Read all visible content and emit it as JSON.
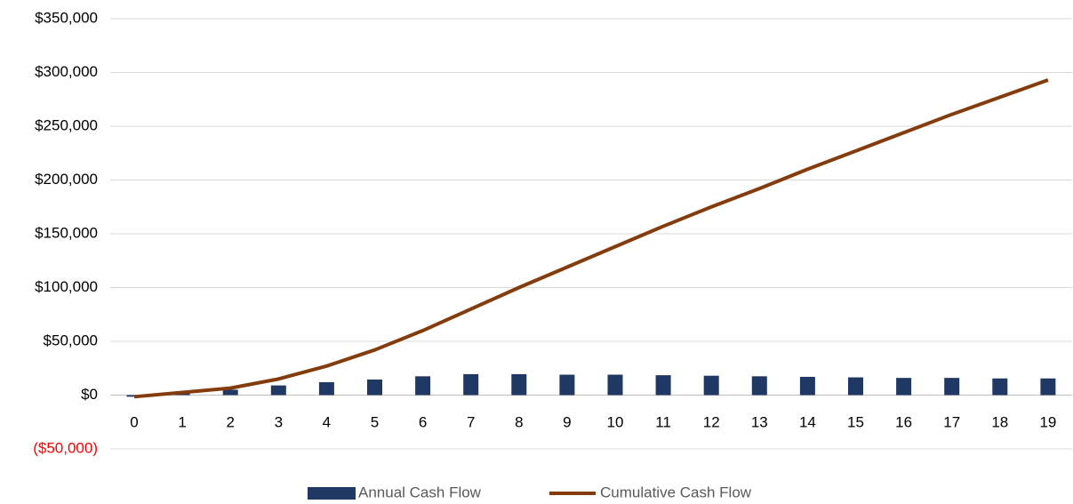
{
  "chart_data": {
    "type": "bar_line",
    "categories": [
      "0",
      "1",
      "2",
      "3",
      "4",
      "5",
      "6",
      "7",
      "8",
      "9",
      "10",
      "11",
      "12",
      "13",
      "14",
      "15",
      "16",
      "17",
      "18",
      "19"
    ],
    "series": [
      {
        "name": "Annual Cash Flow",
        "type": "bar",
        "color": "#203864",
        "values": [
          -1500,
          2000,
          5000,
          9000,
          12000,
          14500,
          17500,
          19500,
          19500,
          19000,
          19000,
          18500,
          18000,
          17500,
          17000,
          16500,
          16000,
          16000,
          15500,
          15500
        ]
      },
      {
        "name": "Cumulative Cash Flow",
        "type": "line",
        "color": "#843c0c",
        "values": [
          -1500,
          2500,
          6500,
          15000,
          27000,
          42000,
          60000,
          80000,
          100000,
          119000,
          138000,
          157000,
          175000,
          192000,
          210000,
          227000,
          244000,
          261000,
          277000,
          293000
        ]
      }
    ],
    "ylim": [
      -50000,
      350000
    ],
    "yticks": [
      {
        "value": -50000,
        "label": "($50,000)"
      },
      {
        "value": 0,
        "label": "$0"
      },
      {
        "value": 50000,
        "label": "$50,000"
      },
      {
        "value": 100000,
        "label": "$100,000"
      },
      {
        "value": 150000,
        "label": "$150,000"
      },
      {
        "value": 200000,
        "label": "$200,000"
      },
      {
        "value": 250000,
        "label": "$250,000"
      },
      {
        "value": 300000,
        "label": "$300,000"
      },
      {
        "value": 350000,
        "label": "$350,000"
      }
    ],
    "negative_tick_color": "#ff0000",
    "grid": true,
    "legend": "bottom"
  }
}
